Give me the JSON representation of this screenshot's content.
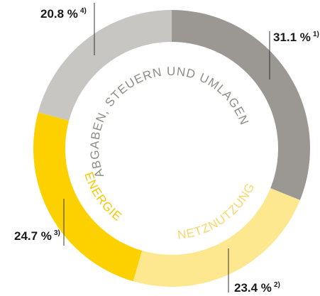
{
  "chart_data": {
    "type": "pie",
    "group_label": "ABGABEN, STEUERN UND UMLAGEN",
    "categories": [
      null,
      "NETZNUTZUNG",
      "ENERGIE",
      null
    ],
    "values": [
      31.1,
      23.4,
      24.7,
      20.8
    ],
    "value_labels": [
      "31.1 %",
      "23.4 %",
      "24.7 %",
      "20.8 %"
    ],
    "footnotes": [
      "1)",
      "2)",
      "3)",
      "4)"
    ],
    "colors": [
      "#9b9893",
      "#fde88f",
      "#fdd100",
      "#c7c6c3"
    ]
  }
}
